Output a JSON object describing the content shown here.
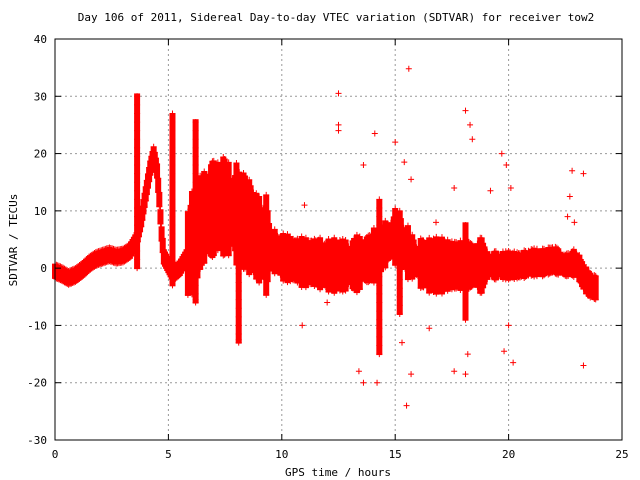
{
  "chart_data": {
    "type": "scatter",
    "title": "Day 106 of 2011, Sidereal Day-to-day VTEC variation (SDTVAR) for receiver tow2",
    "xlabel": "GPS time / hours",
    "ylabel": "SDTVAR / TECUs",
    "xlim": [
      0,
      25
    ],
    "ylim": [
      -30,
      40
    ],
    "xticks": [
      0,
      5,
      10,
      15,
      20,
      25
    ],
    "yticks": [
      -30,
      -20,
      -10,
      0,
      10,
      20,
      30,
      40
    ],
    "grid": true,
    "marker": "+",
    "color": "#ff0000",
    "series": [
      {
        "name": "SDTVAR",
        "core_trace": [
          [
            0.0,
            -0.5
          ],
          [
            0.3,
            -1.0
          ],
          [
            0.6,
            -1.7
          ],
          [
            0.9,
            -1.2
          ],
          [
            1.2,
            -0.3
          ],
          [
            1.5,
            0.8
          ],
          [
            1.8,
            1.6
          ],
          [
            2.1,
            2.0
          ],
          [
            2.4,
            2.4
          ],
          [
            2.7,
            2.0
          ],
          [
            3.0,
            2.2
          ],
          [
            3.3,
            3.0
          ],
          [
            3.6,
            5.0
          ],
          [
            3.8,
            8.5
          ],
          [
            4.0,
            13.0
          ],
          [
            4.2,
            17.5
          ],
          [
            4.35,
            20.0
          ],
          [
            4.5,
            17.0
          ],
          [
            4.6,
            12.0
          ],
          [
            4.7,
            6.0
          ],
          [
            4.8,
            2.0
          ],
          [
            5.0,
            0.5
          ],
          [
            5.2,
            -1.0
          ],
          [
            5.5,
            0.0
          ],
          [
            5.8,
            2.0
          ],
          [
            6.1,
            5.0
          ],
          [
            6.4,
            8.0
          ],
          [
            6.7,
            9.5
          ],
          [
            7.0,
            10.5
          ],
          [
            7.3,
            11.0
          ],
          [
            7.6,
            10.5
          ],
          [
            8.0,
            9.5
          ],
          [
            8.5,
            7.5
          ],
          [
            9.0,
            5.0
          ],
          [
            9.5,
            3.5
          ],
          [
            10.0,
            2.0
          ],
          [
            10.5,
            1.5
          ],
          [
            11.0,
            1.0
          ],
          [
            11.5,
            1.0
          ],
          [
            12.0,
            0.5
          ],
          [
            12.5,
            0.5
          ],
          [
            13.0,
            0.5
          ],
          [
            13.5,
            1.0
          ],
          [
            14.0,
            2.0
          ],
          [
            14.5,
            4.0
          ],
          [
            15.0,
            5.5
          ],
          [
            15.5,
            3.0
          ],
          [
            16.0,
            1.0
          ],
          [
            16.5,
            0.5
          ],
          [
            17.0,
            0.5
          ],
          [
            17.5,
            0.5
          ],
          [
            18.0,
            0.5
          ],
          [
            18.5,
            0.5
          ],
          [
            19.0,
            0.5
          ],
          [
            19.5,
            0.5
          ],
          [
            20.0,
            0.5
          ],
          [
            20.5,
            0.5
          ],
          [
            21.0,
            1.0
          ],
          [
            21.5,
            1.0
          ],
          [
            22.0,
            1.5
          ],
          [
            22.5,
            0.5
          ],
          [
            23.0,
            1.0
          ],
          [
            23.3,
            -1.5
          ],
          [
            23.6,
            -3.0
          ],
          [
            23.9,
            -3.5
          ]
        ],
        "spikes": [
          {
            "x": 3.62,
            "min": 0,
            "max": 30.5
          },
          {
            "x": 5.18,
            "min": -3,
            "max": 27
          },
          {
            "x": 6.2,
            "min": -6,
            "max": 26
          },
          {
            "x": 8.1,
            "min": -13,
            "max": 10
          },
          {
            "x": 14.3,
            "min": -15,
            "max": 12
          },
          {
            "x": 15.2,
            "min": -8,
            "max": 10
          },
          {
            "x": 18.1,
            "min": -9,
            "max": 8
          }
        ],
        "scatter_points": [
          [
            12.5,
            30.5
          ],
          [
            15.6,
            34.8
          ],
          [
            12.5,
            25.0
          ],
          [
            12.5,
            24.0
          ],
          [
            14.1,
            23.5
          ],
          [
            15.0,
            22.0
          ],
          [
            18.1,
            27.5
          ],
          [
            18.4,
            22.5
          ],
          [
            18.3,
            25.0
          ],
          [
            13.6,
            18.0
          ],
          [
            15.4,
            18.5
          ],
          [
            15.7,
            15.5
          ],
          [
            19.7,
            20.0
          ],
          [
            19.9,
            18.0
          ],
          [
            20.1,
            14.0
          ],
          [
            22.8,
            17.0
          ],
          [
            23.3,
            16.5
          ],
          [
            22.7,
            12.5
          ],
          [
            17.6,
            14.0
          ],
          [
            16.8,
            8.0
          ],
          [
            19.2,
            13.5
          ],
          [
            22.6,
            9.0
          ],
          [
            22.9,
            8.0
          ],
          [
            11.0,
            11.0
          ],
          [
            10.9,
            -10.0
          ],
          [
            8.1,
            -12.5
          ],
          [
            13.4,
            -18.0
          ],
          [
            13.6,
            -20.0
          ],
          [
            14.2,
            -20.0
          ],
          [
            15.3,
            -13.0
          ],
          [
            15.5,
            -24.0
          ],
          [
            15.7,
            -18.5
          ],
          [
            17.6,
            -18.0
          ],
          [
            18.1,
            -18.5
          ],
          [
            18.2,
            -15.0
          ],
          [
            19.8,
            -14.5
          ],
          [
            20.2,
            -16.5
          ],
          [
            23.3,
            -17.0
          ],
          [
            20.0,
            -10.0
          ],
          [
            16.5,
            -10.5
          ],
          [
            6.2,
            -5.5
          ],
          [
            12.0,
            -6.0
          ]
        ]
      }
    ]
  }
}
